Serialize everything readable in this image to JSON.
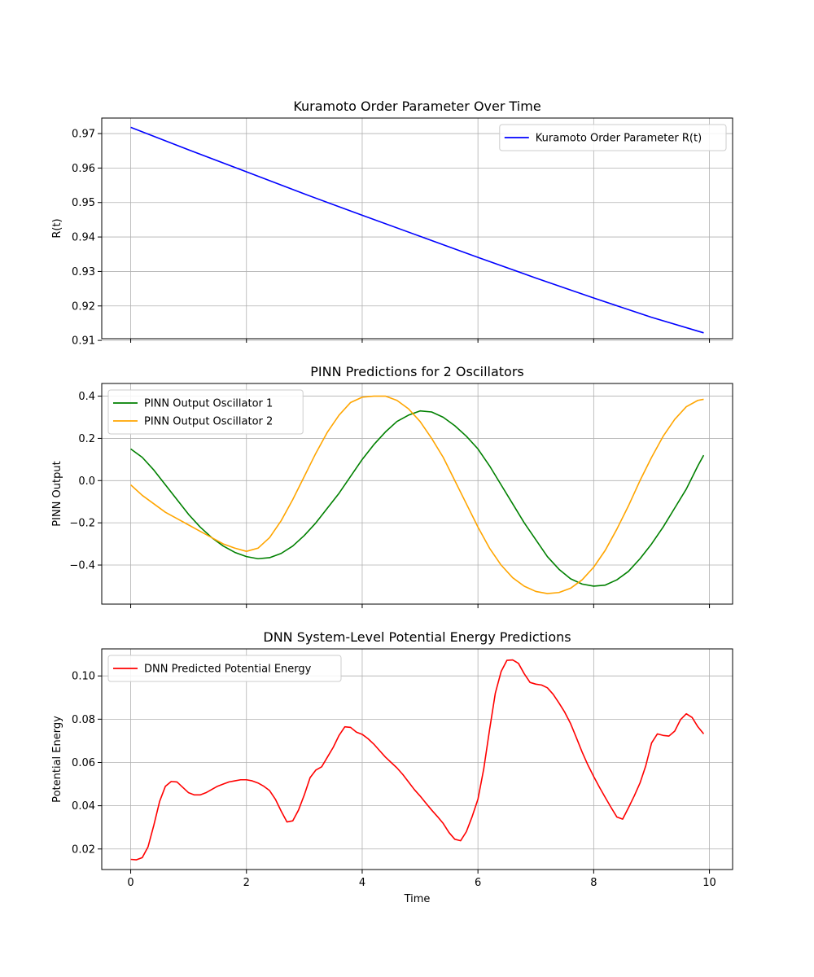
{
  "chart_data": [
    {
      "type": "line",
      "title": "Kuramoto Order Parameter Over Time",
      "xlabel": "",
      "ylabel": "R(t)",
      "xlim": [
        -0.5,
        10.4
      ],
      "ylim": [
        0.9105,
        0.9745
      ],
      "xticks": [
        0,
        2,
        4,
        6,
        8,
        10
      ],
      "show_xtick_labels": false,
      "yticks": [
        0.91,
        0.92,
        0.93,
        0.94,
        0.95,
        0.96,
        0.97
      ],
      "ytick_labels": [
        "0.91",
        "0.92",
        "0.93",
        "0.94",
        "0.95",
        "0.96",
        "0.97"
      ],
      "grid": true,
      "legend": "top-right",
      "series": [
        {
          "name": "Kuramoto Order Parameter R(t)",
          "color": "#0000ff",
          "x": [
            0,
            1,
            2,
            3,
            4,
            5,
            6,
            7,
            8,
            9,
            9.9
          ],
          "y": [
            0.9718,
            0.9653,
            0.9589,
            0.9525,
            0.9463,
            0.9402,
            0.9341,
            0.9281,
            0.9223,
            0.9167,
            0.9122
          ]
        }
      ]
    },
    {
      "type": "line",
      "title": "PINN Predictions for 2 Oscillators",
      "xlabel": "",
      "ylabel": "PINN Output",
      "xlim": [
        -0.5,
        10.4
      ],
      "ylim": [
        -0.585,
        0.46
      ],
      "xticks": [
        0,
        2,
        4,
        6,
        8,
        10
      ],
      "show_xtick_labels": false,
      "yticks": [
        -0.4,
        -0.2,
        0.0,
        0.2,
        0.4
      ],
      "ytick_labels": [
        "−0.4",
        "−0.2",
        "0.0",
        "0.2",
        "0.4"
      ],
      "grid": true,
      "legend": "top-left",
      "series": [
        {
          "name": "PINN Output Oscillator 1",
          "color": "#008000",
          "x": [
            0,
            0.2,
            0.4,
            0.6,
            0.8,
            1.0,
            1.2,
            1.4,
            1.6,
            1.8,
            2.0,
            2.2,
            2.4,
            2.6,
            2.8,
            3.0,
            3.2,
            3.4,
            3.6,
            3.8,
            4.0,
            4.2,
            4.4,
            4.6,
            4.8,
            5.0,
            5.2,
            5.4,
            5.6,
            5.8,
            6.0,
            6.2,
            6.4,
            6.6,
            6.8,
            7.0,
            7.2,
            7.4,
            7.6,
            7.8,
            8.0,
            8.2,
            8.4,
            8.6,
            8.8,
            9.0,
            9.2,
            9.4,
            9.6,
            9.8,
            9.9
          ],
          "y": [
            0.15,
            0.11,
            0.05,
            -0.02,
            -0.09,
            -0.16,
            -0.22,
            -0.27,
            -0.31,
            -0.34,
            -0.36,
            -0.37,
            -0.365,
            -0.345,
            -0.31,
            -0.26,
            -0.2,
            -0.13,
            -0.06,
            0.02,
            0.1,
            0.17,
            0.23,
            0.28,
            0.31,
            0.33,
            0.325,
            0.3,
            0.26,
            0.21,
            0.15,
            0.07,
            -0.02,
            -0.11,
            -0.2,
            -0.28,
            -0.36,
            -0.42,
            -0.465,
            -0.49,
            -0.5,
            -0.495,
            -0.47,
            -0.43,
            -0.37,
            -0.3,
            -0.22,
            -0.13,
            -0.04,
            0.07,
            0.12
          ]
        },
        {
          "name": "PINN Output Oscillator 2",
          "color": "#ffa500",
          "x": [
            0,
            0.2,
            0.4,
            0.6,
            0.8,
            1.0,
            1.2,
            1.4,
            1.6,
            1.8,
            2.0,
            2.2,
            2.4,
            2.6,
            2.8,
            3.0,
            3.2,
            3.4,
            3.6,
            3.8,
            4.0,
            4.2,
            4.4,
            4.6,
            4.8,
            5.0,
            5.2,
            5.4,
            5.6,
            5.8,
            6.0,
            6.2,
            6.4,
            6.6,
            6.8,
            7.0,
            7.2,
            7.4,
            7.6,
            7.8,
            8.0,
            8.2,
            8.4,
            8.6,
            8.8,
            9.0,
            9.2,
            9.4,
            9.6,
            9.8,
            9.9
          ],
          "y": [
            -0.02,
            -0.07,
            -0.11,
            -0.15,
            -0.18,
            -0.21,
            -0.24,
            -0.27,
            -0.3,
            -0.32,
            -0.335,
            -0.32,
            -0.27,
            -0.19,
            -0.09,
            0.02,
            0.13,
            0.23,
            0.31,
            0.37,
            0.395,
            0.4,
            0.4,
            0.38,
            0.34,
            0.28,
            0.2,
            0.11,
            0.0,
            -0.11,
            -0.22,
            -0.32,
            -0.4,
            -0.46,
            -0.5,
            -0.525,
            -0.535,
            -0.53,
            -0.51,
            -0.47,
            -0.41,
            -0.33,
            -0.23,
            -0.12,
            0.0,
            0.11,
            0.21,
            0.29,
            0.35,
            0.38,
            0.385
          ]
        }
      ]
    },
    {
      "type": "line",
      "title": "DNN System-Level Potential Energy Predictions",
      "xlabel": "Time",
      "ylabel": "Potential Energy",
      "xlim": [
        -0.5,
        10.4
      ],
      "ylim": [
        0.0105,
        0.1125
      ],
      "xticks": [
        0,
        2,
        4,
        6,
        8,
        10
      ],
      "xtick_labels": [
        "0",
        "2",
        "4",
        "6",
        "8",
        "10"
      ],
      "show_xtick_labels": true,
      "yticks": [
        0.02,
        0.04,
        0.06,
        0.08,
        0.1
      ],
      "ytick_labels": [
        "0.02",
        "0.04",
        "0.06",
        "0.08",
        "0.10"
      ],
      "grid": true,
      "legend": "top-left",
      "series": [
        {
          "name": "DNN Predicted Potential Energy",
          "color": "#ff0000",
          "x": [
            0,
            0.1,
            0.2,
            0.3,
            0.4,
            0.5,
            0.6,
            0.7,
            0.8,
            0.9,
            1.0,
            1.1,
            1.2,
            1.3,
            1.4,
            1.5,
            1.6,
            1.7,
            1.8,
            1.9,
            2.0,
            2.1,
            2.2,
            2.3,
            2.4,
            2.5,
            2.6,
            2.7,
            2.8,
            2.9,
            3.0,
            3.1,
            3.2,
            3.3,
            3.4,
            3.5,
            3.6,
            3.7,
            3.8,
            3.9,
            4.0,
            4.1,
            4.2,
            4.3,
            4.4,
            4.5,
            4.6,
            4.7,
            4.8,
            4.9,
            5.0,
            5.1,
            5.2,
            5.3,
            5.4,
            5.5,
            5.6,
            5.7,
            5.8,
            5.9,
            6.0,
            6.1,
            6.2,
            6.3,
            6.4,
            6.5,
            6.6,
            6.7,
            6.8,
            6.9,
            7.0,
            7.1,
            7.2,
            7.3,
            7.4,
            7.5,
            7.6,
            7.7,
            7.8,
            7.9,
            8.0,
            8.1,
            8.2,
            8.3,
            8.4,
            8.5,
            8.6,
            8.7,
            8.8,
            8.9,
            9.0,
            9.1,
            9.2,
            9.3,
            9.4,
            9.5,
            9.6,
            9.7,
            9.8,
            9.9
          ],
          "y": [
            0.0152,
            0.015,
            0.016,
            0.021,
            0.031,
            0.042,
            0.049,
            0.0512,
            0.051,
            0.0485,
            0.046,
            0.045,
            0.045,
            0.046,
            0.0475,
            0.049,
            0.05,
            0.051,
            0.0515,
            0.052,
            0.052,
            0.0515,
            0.0505,
            0.049,
            0.047,
            0.043,
            0.0375,
            0.0325,
            0.033,
            0.038,
            0.045,
            0.053,
            0.0565,
            0.058,
            0.0625,
            0.067,
            0.0725,
            0.0765,
            0.0762,
            0.074,
            0.073,
            0.071,
            0.0685,
            0.0655,
            0.0625,
            0.06,
            0.0575,
            0.0545,
            0.051,
            0.0475,
            0.0445,
            0.0412,
            0.038,
            0.035,
            0.0318,
            0.0276,
            0.0245,
            0.0238,
            0.028,
            0.035,
            0.043,
            0.057,
            0.075,
            0.092,
            0.102,
            0.1072,
            0.1074,
            0.1058,
            0.101,
            0.097,
            0.0962,
            0.0958,
            0.0945,
            0.0915,
            0.0875,
            0.0832,
            0.078,
            0.0715,
            0.0648,
            0.0588,
            0.0535,
            0.0485,
            0.0438,
            0.0392,
            0.0348,
            0.0338,
            0.039,
            0.0445,
            0.0505,
            0.0585,
            0.069,
            0.0732,
            0.0725,
            0.0722,
            0.0745,
            0.0798,
            0.0825,
            0.0808,
            0.0765,
            0.0732
          ]
        }
      ]
    }
  ]
}
